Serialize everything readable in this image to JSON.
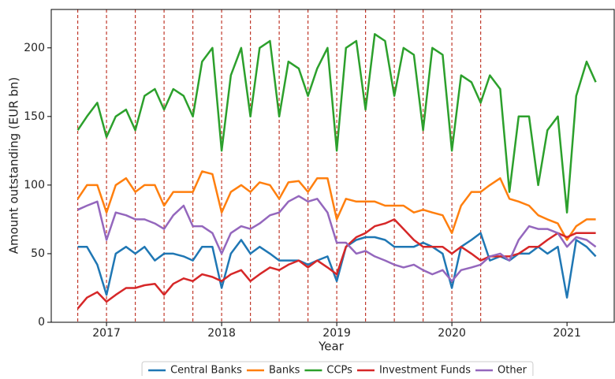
{
  "chart_data": {
    "type": "line",
    "xlabel": "Year",
    "ylabel": "Amount outstanding (EUR bn)",
    "x": [
      2016.75,
      2016.83,
      2016.92,
      2017.0,
      2017.08,
      2017.17,
      2017.25,
      2017.33,
      2017.42,
      2017.5,
      2017.58,
      2017.67,
      2017.75,
      2017.83,
      2017.92,
      2018.0,
      2018.08,
      2018.17,
      2018.25,
      2018.33,
      2018.42,
      2018.5,
      2018.58,
      2018.67,
      2018.75,
      2018.83,
      2018.92,
      2019.0,
      2019.08,
      2019.17,
      2019.25,
      2019.33,
      2019.42,
      2019.5,
      2019.58,
      2019.67,
      2019.75,
      2019.83,
      2019.92,
      2020.0,
      2020.08,
      2020.17,
      2020.25,
      2020.33,
      2020.42,
      2020.5,
      2020.58,
      2020.67,
      2020.75,
      2020.83,
      2020.92,
      2021.0,
      2021.08,
      2021.17,
      2021.25
    ],
    "series": [
      {
        "name": "Central Banks",
        "color": "#1f77b4",
        "values": [
          55,
          55,
          42,
          20,
          50,
          55,
          50,
          55,
          45,
          50,
          50,
          48,
          45,
          55,
          55,
          25,
          50,
          60,
          50,
          55,
          50,
          45,
          45,
          45,
          42,
          45,
          48,
          30,
          55,
          60,
          62,
          62,
          60,
          55,
          55,
          55,
          58,
          55,
          50,
          25,
          55,
          60,
          65,
          45,
          48,
          45,
          50,
          50,
          55,
          50,
          55,
          18,
          60,
          55,
          48
        ]
      },
      {
        "name": "Banks",
        "color": "#ff7f0e",
        "values": [
          90,
          100,
          100,
          80,
          100,
          105,
          95,
          100,
          100,
          85,
          95,
          95,
          95,
          110,
          108,
          80,
          95,
          100,
          95,
          102,
          100,
          90,
          102,
          103,
          95,
          105,
          105,
          75,
          90,
          88,
          88,
          88,
          85,
          85,
          85,
          80,
          82,
          80,
          78,
          65,
          85,
          95,
          95,
          100,
          105,
          90,
          88,
          85,
          78,
          75,
          72,
          60,
          70,
          75,
          75
        ]
      },
      {
        "name": "CCPs",
        "color": "#2ca02c",
        "values": [
          140,
          150,
          160,
          135,
          150,
          155,
          140,
          165,
          170,
          155,
          170,
          165,
          150,
          190,
          200,
          125,
          180,
          200,
          150,
          200,
          205,
          150,
          190,
          185,
          165,
          185,
          200,
          125,
          200,
          205,
          155,
          210,
          205,
          165,
          200,
          195,
          140,
          200,
          195,
          125,
          180,
          175,
          160,
          180,
          170,
          95,
          150,
          150,
          100,
          140,
          150,
          80,
          165,
          190,
          175
        ]
      },
      {
        "name": "Investment Funds",
        "color": "#d62728",
        "values": [
          10,
          18,
          22,
          15,
          20,
          25,
          25,
          27,
          28,
          20,
          28,
          32,
          30,
          35,
          33,
          30,
          35,
          38,
          30,
          35,
          40,
          38,
          42,
          45,
          40,
          45,
          40,
          35,
          55,
          62,
          65,
          70,
          72,
          75,
          68,
          60,
          55,
          55,
          55,
          50,
          55,
          50,
          45,
          48,
          48,
          48,
          50,
          55,
          55,
          60,
          65,
          62,
          65,
          65,
          65
        ]
      },
      {
        "name": "Other",
        "color": "#9467bd",
        "values": [
          82,
          85,
          88,
          60,
          80,
          78,
          75,
          75,
          72,
          68,
          78,
          85,
          70,
          70,
          65,
          50,
          65,
          70,
          68,
          72,
          78,
          80,
          88,
          92,
          88,
          90,
          80,
          58,
          58,
          50,
          52,
          48,
          45,
          42,
          40,
          42,
          38,
          35,
          38,
          30,
          38,
          40,
          42,
          48,
          50,
          45,
          60,
          70,
          68,
          68,
          65,
          55,
          62,
          60,
          55
        ]
      }
    ],
    "vlines": [
      2016.75,
      2017.0,
      2017.25,
      2017.5,
      2017.75,
      2018.0,
      2018.25,
      2018.5,
      2018.75,
      2019.0,
      2019.25,
      2019.5,
      2019.75,
      2020.0,
      2020.25
    ],
    "vline_color": "#c0392b",
    "xlim": [
      2016.52,
      2021.41
    ],
    "xticks": [
      2017,
      2018,
      2019,
      2020,
      2021
    ],
    "ylim": [
      0,
      228
    ],
    "yticks": [
      0,
      50,
      100,
      150,
      200
    ],
    "grid": false,
    "legend": "below"
  }
}
